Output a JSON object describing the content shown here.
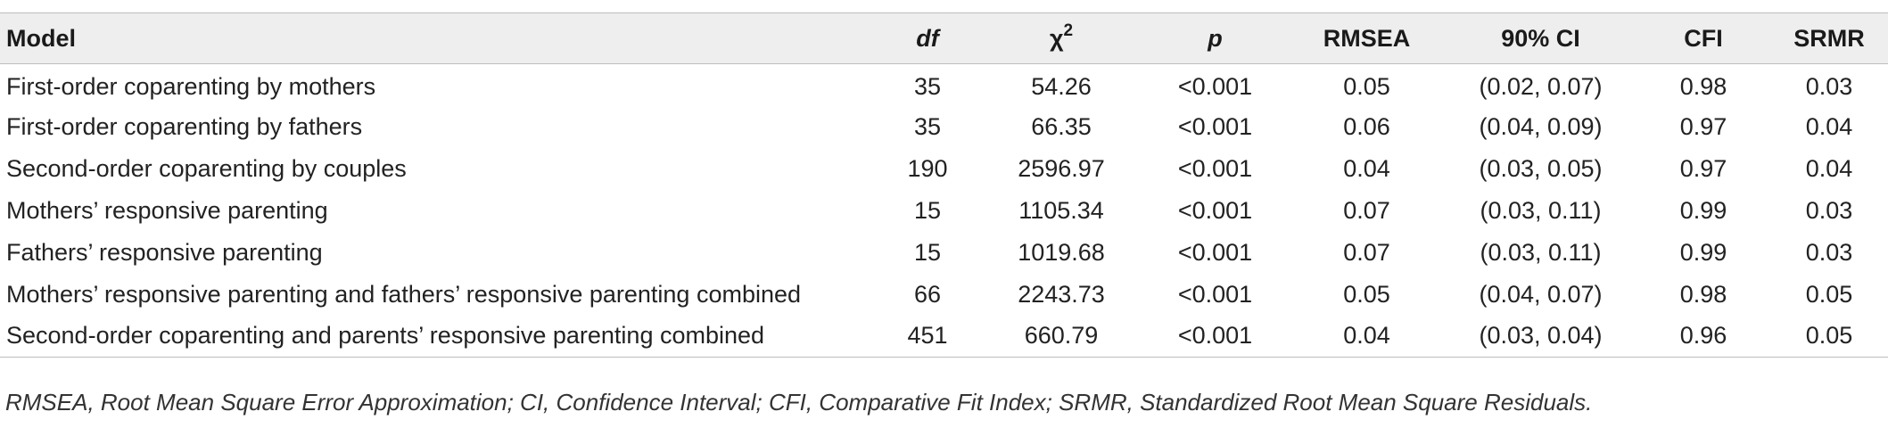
{
  "table": {
    "headers": {
      "model": "Model",
      "df": "df",
      "chi_symbol": "χ",
      "chi_sup": "2",
      "p": "p",
      "rmsea": "RMSEA",
      "ci": "90% CI",
      "cfi": "CFI",
      "srmr": "SRMR"
    },
    "rows": [
      {
        "model": "First-order coparenting by mothers",
        "df": "35",
        "chi2": "54.26",
        "p": "<0.001",
        "rmsea": "0.05",
        "ci": "(0.02, 0.07)",
        "cfi": "0.98",
        "srmr": "0.03"
      },
      {
        "model": "First-order coparenting by fathers",
        "df": "35",
        "chi2": "66.35",
        "p": "<0.001",
        "rmsea": "0.06",
        "ci": "(0.04, 0.09)",
        "cfi": "0.97",
        "srmr": "0.04"
      },
      {
        "model": "Second-order coparenting by couples",
        "df": "190",
        "chi2": "2596.97",
        "p": "<0.001",
        "rmsea": "0.04",
        "ci": "(0.03, 0.05)",
        "cfi": "0.97",
        "srmr": "0.04"
      },
      {
        "model": "Mothers’ responsive parenting",
        "df": "15",
        "chi2": "1105.34",
        "p": "<0.001",
        "rmsea": "0.07",
        "ci": "(0.03, 0.11)",
        "cfi": "0.99",
        "srmr": "0.03"
      },
      {
        "model": "Fathers’ responsive parenting",
        "df": "15",
        "chi2": "1019.68",
        "p": "<0.001",
        "rmsea": "0.07",
        "ci": "(0.03, 0.11)",
        "cfi": "0.99",
        "srmr": "0.03"
      },
      {
        "model": "Mothers’ responsive parenting and fathers’ responsive parenting combined",
        "df": "66",
        "chi2": "2243.73",
        "p": "<0.001",
        "rmsea": "0.05",
        "ci": "(0.04, 0.07)",
        "cfi": "0.98",
        "srmr": "0.05"
      },
      {
        "model": "Second-order coparenting and parents’ responsive parenting combined",
        "df": "451",
        "chi2": "660.79",
        "p": "<0.001",
        "rmsea": "0.04",
        "ci": "(0.03, 0.04)",
        "cfi": "0.96",
        "srmr": "0.05"
      }
    ]
  },
  "footnote": "RMSEA, Root Mean Square Error Approximation; CI, Confidence Interval; CFI, Comparative Fit Index; SRMR, Standardized Root Mean Square Residuals.",
  "colors": {
    "header_background": "#eeeeee",
    "rule_lines": "#bdbdbd",
    "text": "#222222"
  }
}
